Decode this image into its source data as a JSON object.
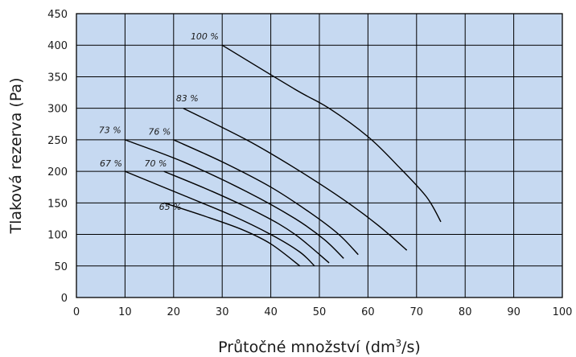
{
  "chart_data": {
    "type": "line",
    "xlabel": "Průtočné množství (dm",
    "xlabel_sup": "3",
    "xlabel_tail": "/s)",
    "ylabel": "Tlaková rezerva (Pa)",
    "xlim": [
      0,
      100
    ],
    "ylim": [
      0,
      450
    ],
    "xticks": [
      "0",
      "10",
      "20",
      "30",
      "40",
      "50",
      "60",
      "70",
      "80",
      "90",
      "100"
    ],
    "yticks": [
      "0",
      "50",
      "100",
      "150",
      "200",
      "250",
      "300",
      "350",
      "400",
      "450"
    ],
    "grid": true,
    "colors": {
      "plot_bg": "#c6d9f1",
      "grid": "#000000",
      "line": "#000000"
    },
    "series": [
      {
        "name": "100 %",
        "x": [
          30,
          45,
          52,
          60,
          66,
          72,
          75
        ],
        "y": [
          400,
          330,
          300,
          255,
          210,
          160,
          120
        ]
      },
      {
        "name": "83 %",
        "x": [
          22,
          35,
          45,
          55,
          62,
          68
        ],
        "y": [
          300,
          250,
          205,
          155,
          115,
          75
        ]
      },
      {
        "name": "76 %",
        "x": [
          20,
          30,
          40,
          48,
          54,
          58
        ],
        "y": [
          250,
          215,
          175,
          135,
          100,
          68
        ]
      },
      {
        "name": "73 %",
        "x": [
          10,
          22,
          35,
          45,
          51,
          55
        ],
        "y": [
          250,
          215,
          168,
          125,
          92,
          62
        ]
      },
      {
        "name": "70 %",
        "x": [
          18,
          28,
          38,
          45,
          52
        ],
        "y": [
          200,
          168,
          132,
          100,
          55
        ]
      },
      {
        "name": "67 %",
        "x": [
          10,
          22,
          32,
          40,
          46,
          49
        ],
        "y": [
          200,
          162,
          130,
          100,
          72,
          50
        ]
      },
      {
        "name": "65 %",
        "x": [
          18,
          26,
          34,
          40,
          46
        ],
        "y": [
          150,
          130,
          108,
          85,
          50
        ]
      }
    ],
    "label_positions": {
      "100 %": [
        23.5,
        409
      ],
      "83 %": [
        20.5,
        311
      ],
      "76 %": [
        14.8,
        258
      ],
      "73 %": [
        4.6,
        261
      ],
      "70 %": [
        14.0,
        208
      ],
      "67 %": [
        4.8,
        208
      ],
      "65 %": [
        17.0,
        139
      ]
    }
  }
}
